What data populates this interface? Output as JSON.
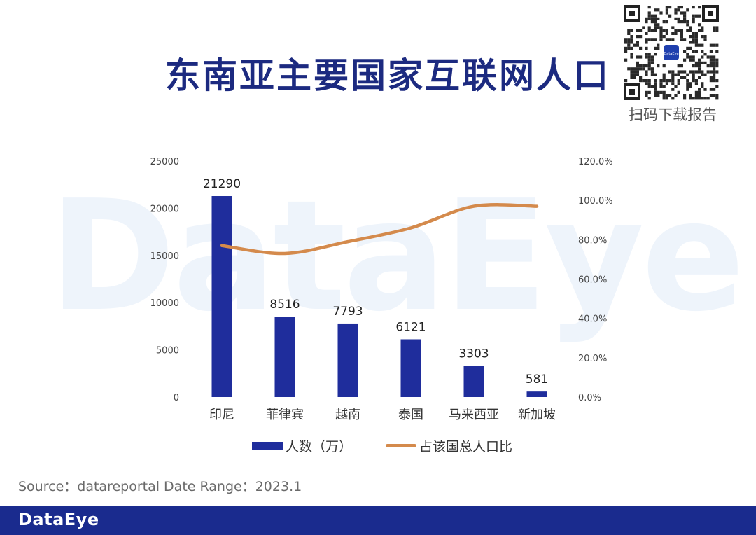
{
  "page": {
    "title": "东南亚主要国家互联网人口",
    "qr_caption": "扫码下载报告",
    "qr_badge": "DataEye",
    "watermark": "DataEye",
    "source": "Source：datareportal Date Range：2023.1",
    "footer_logo": "DataEye"
  },
  "colors": {
    "title": "#1c2a80",
    "bar": "#1f2d9c",
    "line": "#d48a4c",
    "footer": "#1a2b8e",
    "watermark": "#eef4fb"
  },
  "chart_data": {
    "type": "bar+line",
    "categories": [
      "印尼",
      "菲律宾",
      "越南",
      "泰国",
      "马来西亚",
      "新加坡"
    ],
    "series": [
      {
        "name": "人数（万）",
        "type": "bar",
        "axis": "left",
        "values": [
          21290,
          8516,
          7793,
          6121,
          3303,
          581
        ],
        "data_labels": [
          "21290",
          "8516",
          "7793",
          "6121",
          "3303",
          "581"
        ]
      },
      {
        "name": "占该国总人口比",
        "type": "line",
        "axis": "right",
        "values": [
          77.0,
          73.0,
          79.0,
          86.0,
          97.0,
          97.0
        ]
      }
    ],
    "y_left": {
      "min": 0,
      "max": 25000,
      "ticks": [
        "0",
        "5000",
        "10000",
        "15000",
        "20000",
        "25000"
      ]
    },
    "y_right": {
      "min": 0,
      "max": 120,
      "ticks": [
        "0.0%",
        "20.0%",
        "40.0%",
        "60.0%",
        "80.0%",
        "100.0%",
        "120.0%"
      ]
    },
    "grid": false,
    "legend_position": "bottom"
  }
}
